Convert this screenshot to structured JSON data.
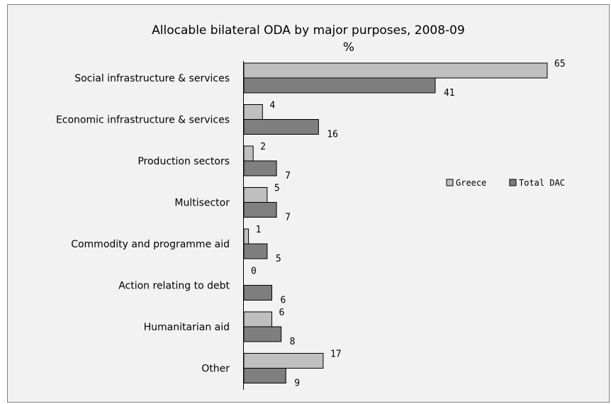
{
  "chart_data": {
    "type": "bar",
    "orientation": "horizontal",
    "title": "Allocable bilateral ODA by major purposes, 2008-09",
    "subtitle": "%",
    "categories": [
      "Social infrastructure & services",
      "Economic infrastructure & services",
      "Production sectors",
      "Multisector",
      "Commodity and programme aid",
      "Action relating to debt",
      "Humanitarian aid",
      "Other"
    ],
    "series": [
      {
        "name": "Greece",
        "color": "#bfbfbf",
        "values": [
          65,
          4,
          2,
          5,
          1,
          0,
          6,
          17
        ]
      },
      {
        "name": "Total DAC",
        "color": "#7f7f7f",
        "values": [
          41,
          16,
          7,
          7,
          5,
          6,
          8,
          9
        ]
      }
    ],
    "xlim": [
      0,
      65
    ],
    "grid": false,
    "legend_position": "right"
  }
}
